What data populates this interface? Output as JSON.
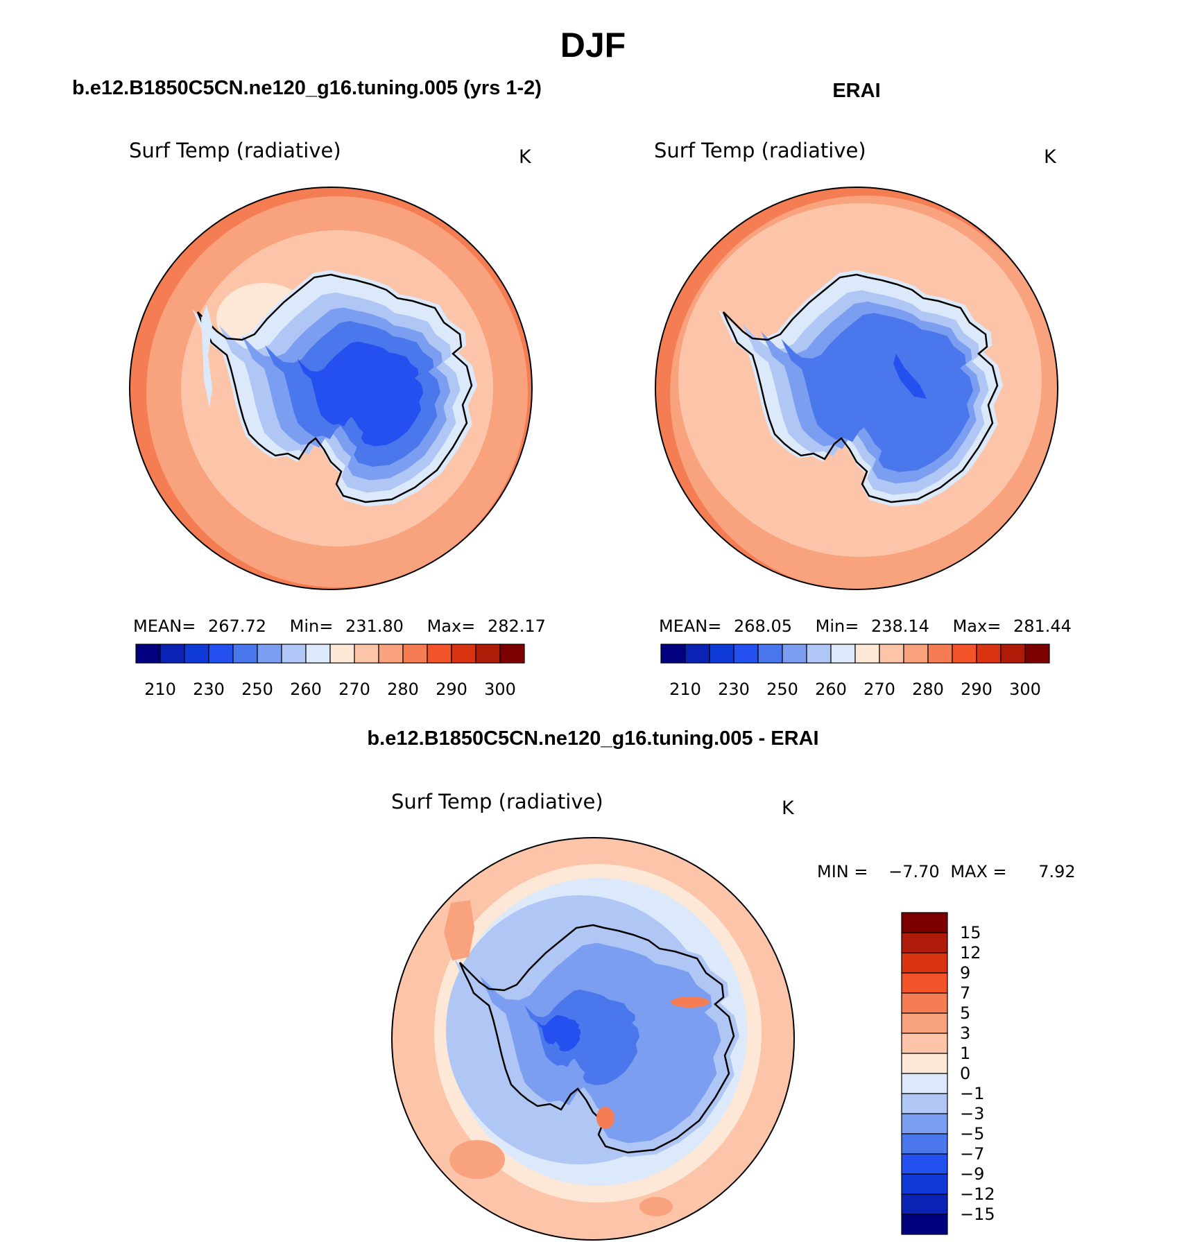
{
  "figure": {
    "season": "DJF",
    "panels": [
      {
        "case_title": "b.e12.B1850C5CN.ne120_g16.tuning.005 (yrs 1-2)",
        "variable": "Surf Temp (radiative)",
        "units": "K",
        "stats": {
          "mean_label": "MEAN=",
          "mean": "267.72",
          "min_label": "Min=",
          "min": "231.80",
          "max_label": "Max=",
          "max": "282.17"
        }
      },
      {
        "case_title": "ERAI",
        "variable": "Surf Temp (radiative)",
        "units": "K",
        "stats": {
          "mean_label": "MEAN=",
          "mean": "268.05",
          "min_label": "Min=",
          "min": "238.14",
          "max_label": "Max=",
          "max": "281.44"
        }
      },
      {
        "case_title": "b.e12.B1850C5CN.ne120_g16.tuning.005 - ERAI",
        "variable": "Surf Temp (radiative)",
        "units": "K",
        "stats": {
          "min_label": "MIN =",
          "min": "−7.70",
          "max_label": "MAX =",
          "max": "7.92"
        }
      }
    ],
    "abs_colorbar": {
      "tick_labels": [
        "210",
        "230",
        "250",
        "260",
        "270",
        "280",
        "290",
        "300"
      ],
      "colors": [
        "#00007f",
        "#0a23b4",
        "#0f3ad8",
        "#2450f0",
        "#4a78ec",
        "#7b9ef0",
        "#b0c7f5",
        "#dce9fa",
        "#fde7d6",
        "#fcc5a9",
        "#f9a27e",
        "#f57d53",
        "#f25328",
        "#d93412",
        "#ae1b09",
        "#7d0000"
      ]
    },
    "diff_colorbar": {
      "tick_labels": [
        "15",
        "12",
        "9",
        "7",
        "5",
        "3",
        "1",
        "0",
        "−1",
        "−3",
        "−5",
        "−7",
        "−9",
        "−12",
        "−15"
      ],
      "colors": [
        "#7d0000",
        "#ae1b09",
        "#d93412",
        "#f25328",
        "#f57d53",
        "#f9a27e",
        "#fcc5a9",
        "#fde7d6",
        "#dce9fa",
        "#b0c7f5",
        "#7b9ef0",
        "#4a78ec",
        "#2450f0",
        "#0f3ad8",
        "#0a23b4",
        "#00007f"
      ]
    }
  }
}
